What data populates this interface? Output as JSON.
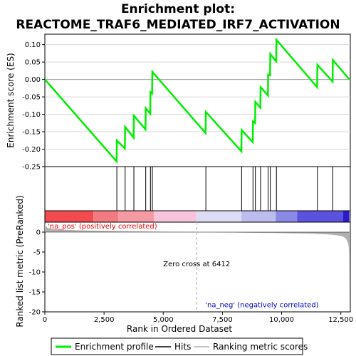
{
  "title_line1": "Enrichment plot:",
  "title_line2": "REACTOME_TRAF6_MEDIATED_IRF7_ACTIVATION",
  "colors": {
    "enrichment_line": "#00ee00",
    "hit_line": "#000000",
    "metric_fill": "#b0b0b0",
    "pos_label": "#ff0000",
    "neg_label": "#0000cc",
    "zero_cross": "#b0b0b0"
  },
  "chart_data": {
    "type": "line",
    "x_ticks": [
      0,
      2500,
      5000,
      7500,
      10000,
      12500
    ],
    "x_tick_labels": [
      "0",
      "2,500",
      "5,000",
      "7,500",
      "10,000",
      "12,500"
    ],
    "xlabel": "Rank in Ordered Dataset",
    "xlim": [
      0,
      12900
    ],
    "es_panel": {
      "ylabel": "Enrichment score (ES)",
      "ylim": [
        -0.25,
        0.13
      ],
      "y_ticks": [
        -0.25,
        -0.2,
        -0.15,
        -0.1,
        -0.05,
        0.0,
        0.05,
        0.1
      ],
      "y_tick_labels": [
        "-0.25",
        "-0.20",
        "-0.15",
        "-0.10",
        "-0.05",
        "0.00",
        "0.05",
        "0.10"
      ],
      "points": [
        [
          0,
          0.0
        ],
        [
          3030,
          -0.235
        ],
        [
          3040,
          -0.175
        ],
        [
          3380,
          -0.198
        ],
        [
          3390,
          -0.136
        ],
        [
          3750,
          -0.167
        ],
        [
          3760,
          -0.104
        ],
        [
          4250,
          -0.143
        ],
        [
          4260,
          -0.082
        ],
        [
          4450,
          -0.098
        ],
        [
          4460,
          -0.036
        ],
        [
          4530,
          -0.04
        ],
        [
          4540,
          0.022
        ],
        [
          6790,
          -0.154
        ],
        [
          6800,
          -0.093
        ],
        [
          8300,
          -0.206
        ],
        [
          8310,
          -0.145
        ],
        [
          8780,
          -0.18
        ],
        [
          8790,
          -0.12
        ],
        [
          8880,
          -0.125
        ],
        [
          8890,
          -0.064
        ],
        [
          9100,
          -0.081
        ],
        [
          9110,
          -0.022
        ],
        [
          9420,
          -0.046
        ],
        [
          9430,
          0.014
        ],
        [
          9510,
          0.012
        ],
        [
          9520,
          0.073
        ],
        [
          9770,
          0.052
        ],
        [
          9780,
          0.114
        ],
        [
          11500,
          -0.022
        ],
        [
          11510,
          0.042
        ],
        [
          12150,
          -0.006
        ],
        [
          12160,
          0.056
        ],
        [
          12860,
          0.0
        ]
      ]
    },
    "hits": [
      3040,
      3390,
      3760,
      4260,
      4460,
      4540,
      6800,
      8310,
      8790,
      8890,
      9110,
      9430,
      9520,
      9780,
      11510,
      12160
    ],
    "metric_panel": {
      "ylabel": "Ranked list metric (PreRanked)",
      "ylim": [
        -20,
        2.5
      ],
      "y_ticks": [
        0,
        -5,
        -10,
        -15,
        -20
      ],
      "y_tick_labels": [
        "0",
        "-5",
        "-10",
        "-15",
        "-20"
      ],
      "curve": [
        [
          0,
          2.2
        ],
        [
          30,
          1.5
        ],
        [
          100,
          1.1
        ],
        [
          300,
          0.8
        ],
        [
          700,
          0.6
        ],
        [
          1500,
          0.45
        ],
        [
          2500,
          0.3
        ],
        [
          3500,
          0.2
        ],
        [
          4500,
          0.12
        ],
        [
          5500,
          0.05
        ],
        [
          6412,
          0.0
        ],
        [
          7500,
          -0.06
        ],
        [
          8500,
          -0.12
        ],
        [
          9500,
          -0.2
        ],
        [
          10500,
          -0.3
        ],
        [
          11300,
          -0.4
        ],
        [
          11900,
          -0.55
        ],
        [
          12300,
          -0.75
        ],
        [
          12550,
          -1.0
        ],
        [
          12700,
          -1.5
        ],
        [
          12780,
          -2.4
        ],
        [
          12830,
          -3.5
        ],
        [
          12850,
          -6.5
        ],
        [
          12860,
          -19.5
        ]
      ],
      "zero_cross_rank": 6412,
      "zero_cross_label": "Zero cross at 6412",
      "pos_label": "'na_pos' (positively correlated)",
      "neg_label": "'na_neg' (negatively correlated)"
    },
    "heat_bar": [
      {
        "from": 0,
        "to": 2050,
        "color": "#f24a4f"
      },
      {
        "from": 2050,
        "to": 3100,
        "color": "#f27a80"
      },
      {
        "from": 3100,
        "to": 4600,
        "color": "#f59aa2"
      },
      {
        "from": 4600,
        "to": 6400,
        "color": "#f8c4dc"
      },
      {
        "from": 6400,
        "to": 8300,
        "color": "#dcdcf4"
      },
      {
        "from": 8300,
        "to": 9750,
        "color": "#bcbcee"
      },
      {
        "from": 9750,
        "to": 10650,
        "color": "#8a8ae6"
      },
      {
        "from": 10650,
        "to": 12600,
        "color": "#5a52dc"
      },
      {
        "from": 12600,
        "to": 12860,
        "color": "#2a1ac8"
      }
    ],
    "legend": [
      {
        "label": "Enrichment profile",
        "kind": "line",
        "color": "#00ee00"
      },
      {
        "label": "Hits",
        "kind": "line",
        "color": "#000000"
      },
      {
        "label": "Ranking metric scores",
        "kind": "line",
        "color": "#b0b0b0"
      }
    ]
  }
}
